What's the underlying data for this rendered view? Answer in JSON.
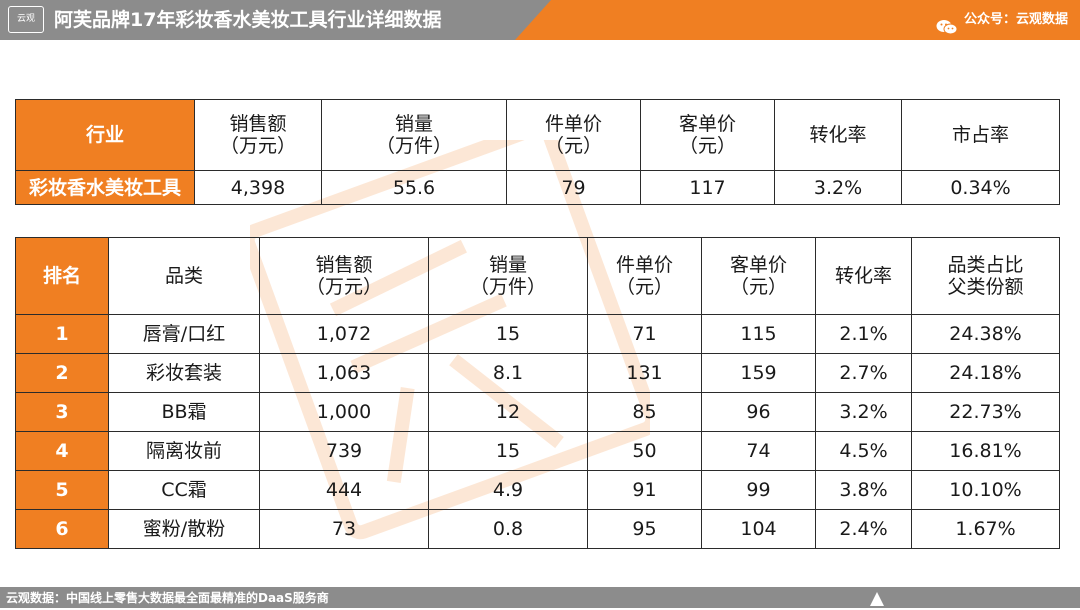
{
  "header": {
    "logo_text": "云观",
    "title": "阿芙品牌17年彩妆香水美妆工具行业详细数据",
    "wechat_label": "公众号：云观数据"
  },
  "industry_table": {
    "headers": [
      {
        "l1": "行业",
        "l2": ""
      },
      {
        "l1": "销售额",
        "l2": "（万元）"
      },
      {
        "l1": "销量",
        "l2": "（万件）"
      },
      {
        "l1": "件单价",
        "l2": "（元）"
      },
      {
        "l1": "客单价",
        "l2": "（元）"
      },
      {
        "l1": "转化率",
        "l2": ""
      },
      {
        "l1": "市占率",
        "l2": ""
      }
    ],
    "row": [
      "彩妆香水美妆工具",
      "4,398",
      "55.6",
      "79",
      "117",
      "3.2%",
      "0.34%"
    ]
  },
  "category_table": {
    "headers": [
      {
        "l1": "排名",
        "l2": ""
      },
      {
        "l1": "品类",
        "l2": ""
      },
      {
        "l1": "销售额",
        "l2": "（万元）"
      },
      {
        "l1": "销量",
        "l2": "（万件）"
      },
      {
        "l1": "件单价",
        "l2": "（元）"
      },
      {
        "l1": "客单价",
        "l2": "（元）"
      },
      {
        "l1": "转化率",
        "l2": ""
      },
      {
        "l1": "品类占比",
        "l2": "父类份额"
      }
    ],
    "rows": [
      [
        "1",
        "唇膏/口红",
        "1,072",
        "15",
        "71",
        "115",
        "2.1%",
        "24.38%"
      ],
      [
        "2",
        "彩妆套装",
        "1,063",
        "8.1",
        "131",
        "159",
        "2.7%",
        "24.18%"
      ],
      [
        "3",
        "BB霜",
        "1,000",
        "12",
        "85",
        "96",
        "3.2%",
        "22.73%"
      ],
      [
        "4",
        "隔离妆前",
        "739",
        "15",
        "50",
        "74",
        "4.5%",
        "16.81%"
      ],
      [
        "5",
        "CC霜",
        "444",
        "4.9",
        "91",
        "99",
        "3.8%",
        "10.10%"
      ],
      [
        "6",
        "蜜粉/散粉",
        "73",
        "0.8",
        "95",
        "104",
        "2.4%",
        "1.67%"
      ]
    ]
  },
  "footer": {
    "text": "云观数据：中国线上零售大数据最全面最精准的DaaS服务商"
  },
  "colors": {
    "accent": "#f07f22",
    "bar_gray": "#8c8c8c",
    "border": "#2b2b2b"
  },
  "icons": [
    "wechat-icon",
    "scroll-up-icon"
  ]
}
